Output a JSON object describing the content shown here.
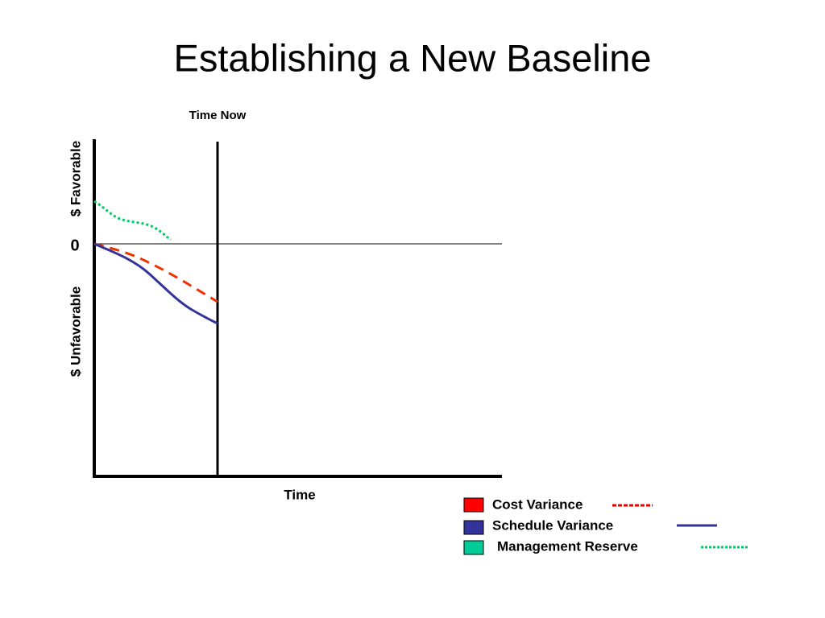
{
  "header": {
    "title": "Establishing a New Baseline"
  },
  "diagram": {
    "time_now_label": "Time Now",
    "y_favorable_label": "$ Favorable",
    "y_unfavorable_label": "$ Unfavorable",
    "zero_label": "0",
    "x_label": "Time"
  },
  "legend": {
    "items": [
      {
        "label": "Cost Variance"
      },
      {
        "label": "Schedule Variance"
      },
      {
        "label": "Management Reserve"
      }
    ]
  }
}
